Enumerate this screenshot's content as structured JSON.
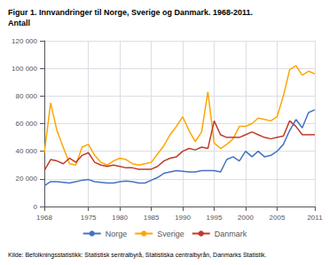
{
  "chart_data": {
    "type": "line",
    "title": "Figur 1. Innvandringer til Norge, Sverige og Danmark. 1968-2011.",
    "subtitle": "Antall",
    "annotations": [
      "Kilde: Befolkningsstatistikk: Statistisk sentralbyrå, Statistiska centralbyrån, Danmarks Statistik."
    ],
    "x": [
      1968,
      1969,
      1970,
      1971,
      1972,
      1973,
      1974,
      1975,
      1976,
      1977,
      1978,
      1979,
      1980,
      1981,
      1982,
      1983,
      1984,
      1985,
      1986,
      1987,
      1988,
      1989,
      1990,
      1991,
      1992,
      1993,
      1994,
      1995,
      1996,
      1997,
      1998,
      1999,
      2000,
      2001,
      2002,
      2003,
      2004,
      2005,
      2006,
      2007,
      2008,
      2009,
      2010,
      2011
    ],
    "series": [
      {
        "name": "Norge",
        "color": "#4472c4",
        "values": [
          15000,
          18000,
          18000,
          17500,
          17000,
          18000,
          19000,
          19500,
          18000,
          17500,
          17000,
          17000,
          18000,
          18500,
          18000,
          17000,
          17000,
          19000,
          21000,
          24000,
          25000,
          26000,
          25500,
          25000,
          25000,
          26000,
          26000,
          26000,
          25000,
          34000,
          36000,
          33000,
          40000,
          36000,
          40000,
          36000,
          37000,
          40000,
          45000,
          55000,
          63000,
          57000,
          68000,
          70000
        ]
      },
      {
        "name": "Sverige",
        "color": "#ffa500",
        "values": [
          39000,
          75000,
          55000,
          43000,
          31000,
          30000,
          43000,
          45000,
          37000,
          32000,
          30000,
          33000,
          35000,
          34000,
          31000,
          30000,
          31000,
          32000,
          38000,
          44000,
          52000,
          58000,
          65000,
          55000,
          47000,
          54000,
          83000,
          46000,
          42000,
          45000,
          49000,
          58000,
          58000,
          60000,
          64000,
          63000,
          62000,
          65000,
          80000,
          99000,
          102000,
          95000,
          98000,
          96000
        ]
      },
      {
        "name": "Danmark",
        "color": "#c0392b",
        "values": [
          26000,
          34000,
          33000,
          31000,
          35000,
          32000,
          37000,
          39000,
          32000,
          30000,
          29000,
          30000,
          29000,
          28000,
          28000,
          27000,
          27000,
          27000,
          29000,
          33000,
          35000,
          36000,
          40000,
          42000,
          41000,
          43000,
          42000,
          62000,
          52000,
          50000,
          50000,
          50000,
          52000,
          54000,
          52000,
          50000,
          49000,
          50000,
          51000,
          62000,
          58000,
          52000,
          52000,
          52000
        ]
      }
    ],
    "xlim": [
      1968,
      2011
    ],
    "xticks": [
      1968,
      1975,
      1980,
      1985,
      1990,
      1995,
      2000,
      2005,
      2011
    ],
    "ylim": [
      0,
      120000
    ],
    "yticks": [
      0,
      {
        "value": 20000,
        "label": "20 000"
      },
      {
        "value": 40000,
        "label": "40 000"
      },
      {
        "value": 60000,
        "label": "60 000"
      },
      {
        "value": 80000,
        "label": "80 000"
      },
      {
        "value": 100000,
        "label": "100 000"
      },
      {
        "value": 120000,
        "label": "120 000"
      }
    ],
    "grid": true,
    "legend": "bottom"
  }
}
